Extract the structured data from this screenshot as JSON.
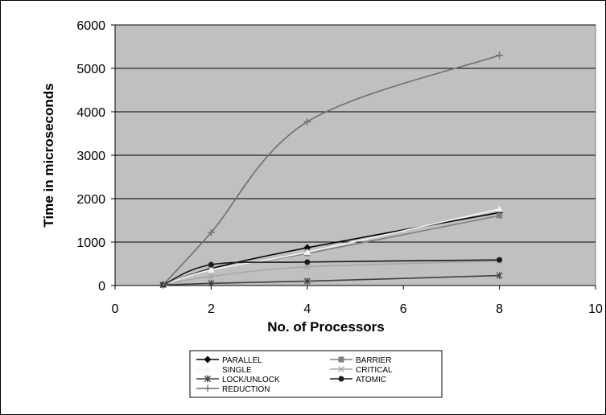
{
  "chart_data": {
    "type": "line",
    "title": "",
    "xlabel": "No. of Processors",
    "ylabel": "Time in microseconds",
    "xlim": [
      0,
      10
    ],
    "ylim": [
      0,
      6000
    ],
    "xticks": [
      0,
      2,
      4,
      6,
      8,
      10
    ],
    "yticks": [
      0,
      1000,
      2000,
      3000,
      4000,
      5000,
      6000
    ],
    "grid": "horizontal",
    "plot_background": "#c0c0c0",
    "legend_position": "bottom",
    "series": [
      {
        "name": "PARALLEL",
        "color": "#000000",
        "marker": "diamond",
        "x": [
          1,
          2,
          4,
          8
        ],
        "y": [
          15,
          390,
          870,
          1680
        ]
      },
      {
        "name": "BARRIER",
        "color": "#808080",
        "marker": "square",
        "x": [
          1,
          2,
          4,
          8
        ],
        "y": [
          15,
          370,
          740,
          1610
        ]
      },
      {
        "name": "SINGLE",
        "color": "#f4f4f4",
        "marker": "triangle",
        "x": [
          1,
          2,
          4,
          8
        ],
        "y": [
          15,
          360,
          770,
          1760
        ]
      },
      {
        "name": "CRITICAL",
        "color": "#a6a6a6",
        "marker": "x",
        "x": [
          1,
          2,
          4,
          8
        ],
        "y": [
          15,
          210,
          430,
          560
        ]
      },
      {
        "name": "LOCK/UNLOCK",
        "color": "#404040",
        "marker": "star",
        "x": [
          1,
          2,
          4,
          8
        ],
        "y": [
          15,
          50,
          100,
          230
        ]
      },
      {
        "name": "ATOMIC",
        "color": "#1a1a1a",
        "marker": "circle",
        "x": [
          1,
          2,
          4,
          8
        ],
        "y": [
          15,
          480,
          540,
          590
        ]
      },
      {
        "name": "REDUCTION",
        "color": "#6e6e6e",
        "marker": "plus",
        "x": [
          1,
          2,
          4,
          8
        ],
        "y": [
          15,
          1220,
          3770,
          5300
        ]
      }
    ]
  }
}
